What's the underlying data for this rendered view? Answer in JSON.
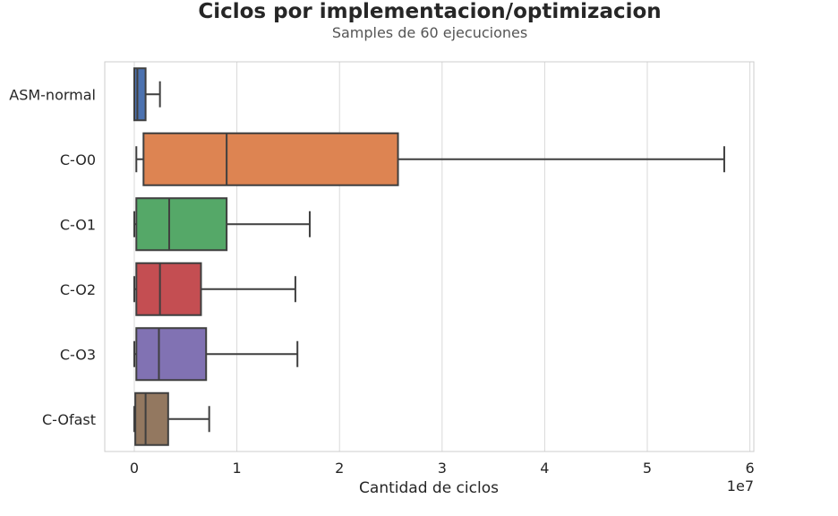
{
  "chart_data": {
    "type": "boxplot",
    "orientation": "horizontal",
    "title": "Ciclos por implementacion/optimizacion",
    "subtitle": "Samples de 60 ejecuciones",
    "xlabel": "Cantidad de ciclos",
    "x_offset_label": "1e7",
    "xlim": [
      -0.3,
      6.05
    ],
    "x_scale": 10000000.0,
    "xticks": [
      0,
      1,
      2,
      3,
      4,
      5,
      6
    ],
    "grid": true,
    "categories": [
      "ASM-normal",
      "C-O0",
      "C-O1",
      "C-O2",
      "C-O3",
      "C-Ofast"
    ],
    "series": [
      {
        "category": "ASM-normal",
        "whislo": 0.0,
        "q1": 0.0,
        "median": 0.03,
        "q3": 0.11,
        "whishi": 0.25,
        "color": "#4c72b0"
      },
      {
        "category": "C-O0",
        "whislo": 0.02,
        "q1": 0.09,
        "median": 0.9,
        "q3": 2.57,
        "whishi": 5.75,
        "color": "#dd8452"
      },
      {
        "category": "C-O1",
        "whislo": 0.0,
        "q1": 0.02,
        "median": 0.34,
        "q3": 0.9,
        "whishi": 1.71,
        "color": "#55a868"
      },
      {
        "category": "C-O2",
        "whislo": 0.0,
        "q1": 0.02,
        "median": 0.25,
        "q3": 0.65,
        "whishi": 1.57,
        "color": "#c44e52"
      },
      {
        "category": "C-O3",
        "whislo": 0.0,
        "q1": 0.02,
        "median": 0.24,
        "q3": 0.7,
        "whishi": 1.59,
        "color": "#8172b3"
      },
      {
        "category": "C-Ofast",
        "whislo": 0.0,
        "q1": 0.01,
        "median": 0.11,
        "q3": 0.33,
        "whishi": 0.73,
        "color": "#937860"
      }
    ]
  }
}
